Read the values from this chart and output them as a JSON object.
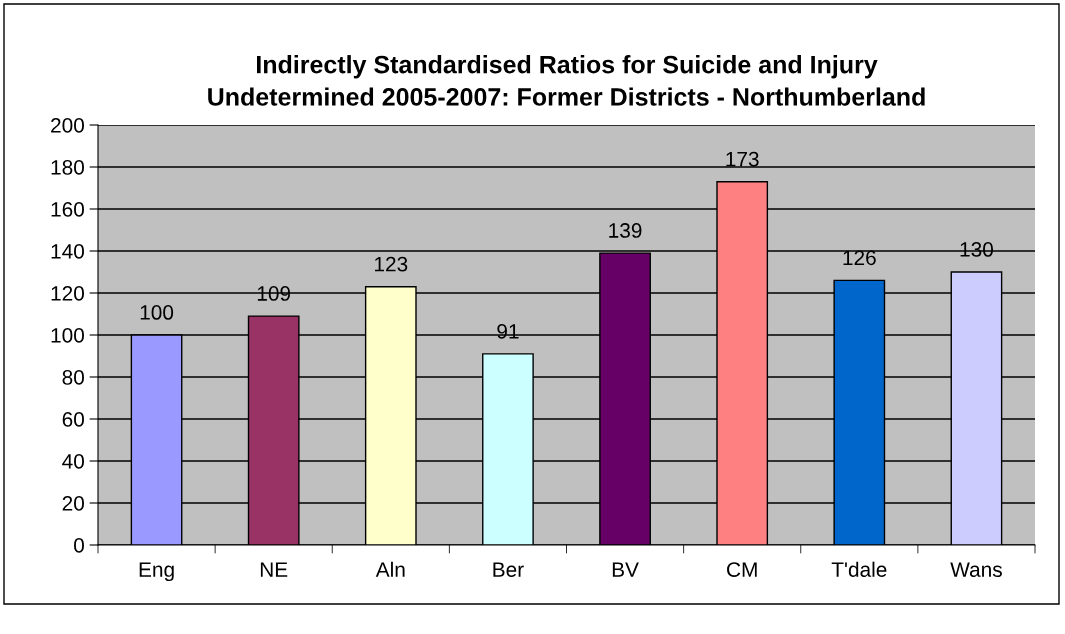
{
  "chart_data": {
    "type": "bar",
    "title": "Indirectly Standardised Ratios for Suicide and Injury\nUndetermined 2005-2007: Former Districts - Northumberland",
    "categories": [
      "Eng",
      "NE",
      "Aln",
      "Ber",
      "BV",
      "CM",
      "T'dale",
      "Wans"
    ],
    "values": [
      100,
      109,
      123,
      91,
      139,
      173,
      126,
      130
    ],
    "colors": [
      "#9999ff",
      "#993366",
      "#ffffcc",
      "#ccffff",
      "#660066",
      "#ff8080",
      "#0066cc",
      "#ccccff"
    ],
    "ylim": [
      0,
      200
    ],
    "yticks": [
      0,
      20,
      40,
      60,
      80,
      100,
      120,
      140,
      160,
      180,
      200
    ],
    "grid": "y",
    "data_labels": true
  }
}
